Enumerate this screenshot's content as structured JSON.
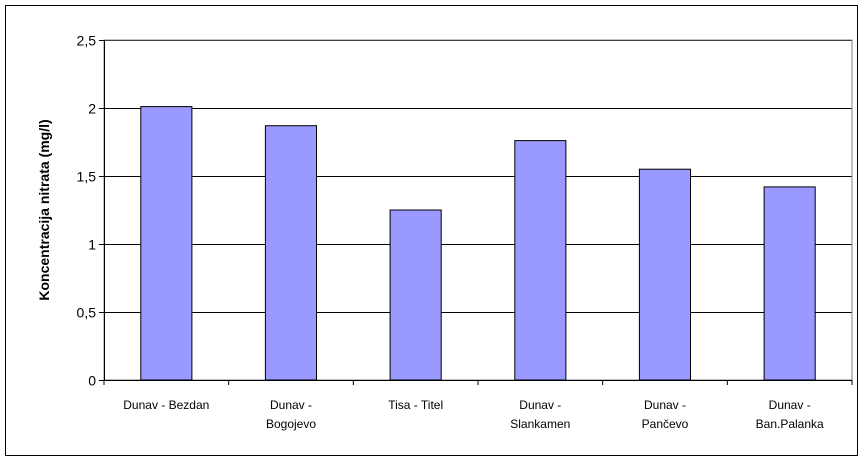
{
  "chart_data": {
    "type": "bar",
    "categories": [
      [
        "Dunav - Bezdan"
      ],
      [
        "Dunav -",
        "Bogojevo"
      ],
      [
        "Tisa - Titel"
      ],
      [
        "Dunav -",
        "Slankamen"
      ],
      [
        "Dunav -",
        "Pančevo"
      ],
      [
        "Dunav -",
        "Ban.Palanka"
      ]
    ],
    "values": [
      2.01,
      1.87,
      1.25,
      1.76,
      1.55,
      1.42
    ],
    "xlabel": "",
    "ylabel": "Koncentracija nitrata (mg/l)",
    "ylim": [
      0,
      2.5
    ],
    "yticks": [
      "0",
      "0,5",
      "1",
      "1,5",
      "2",
      "2,5"
    ],
    "ytick_values": [
      0,
      0.5,
      1,
      1.5,
      2,
      2.5
    ],
    "grid": true,
    "legend": "none",
    "colors": {
      "bar_fill": "#9999FF",
      "bar_stroke": "#000000",
      "gridline": "#000000",
      "plot_border": "#808080"
    }
  }
}
